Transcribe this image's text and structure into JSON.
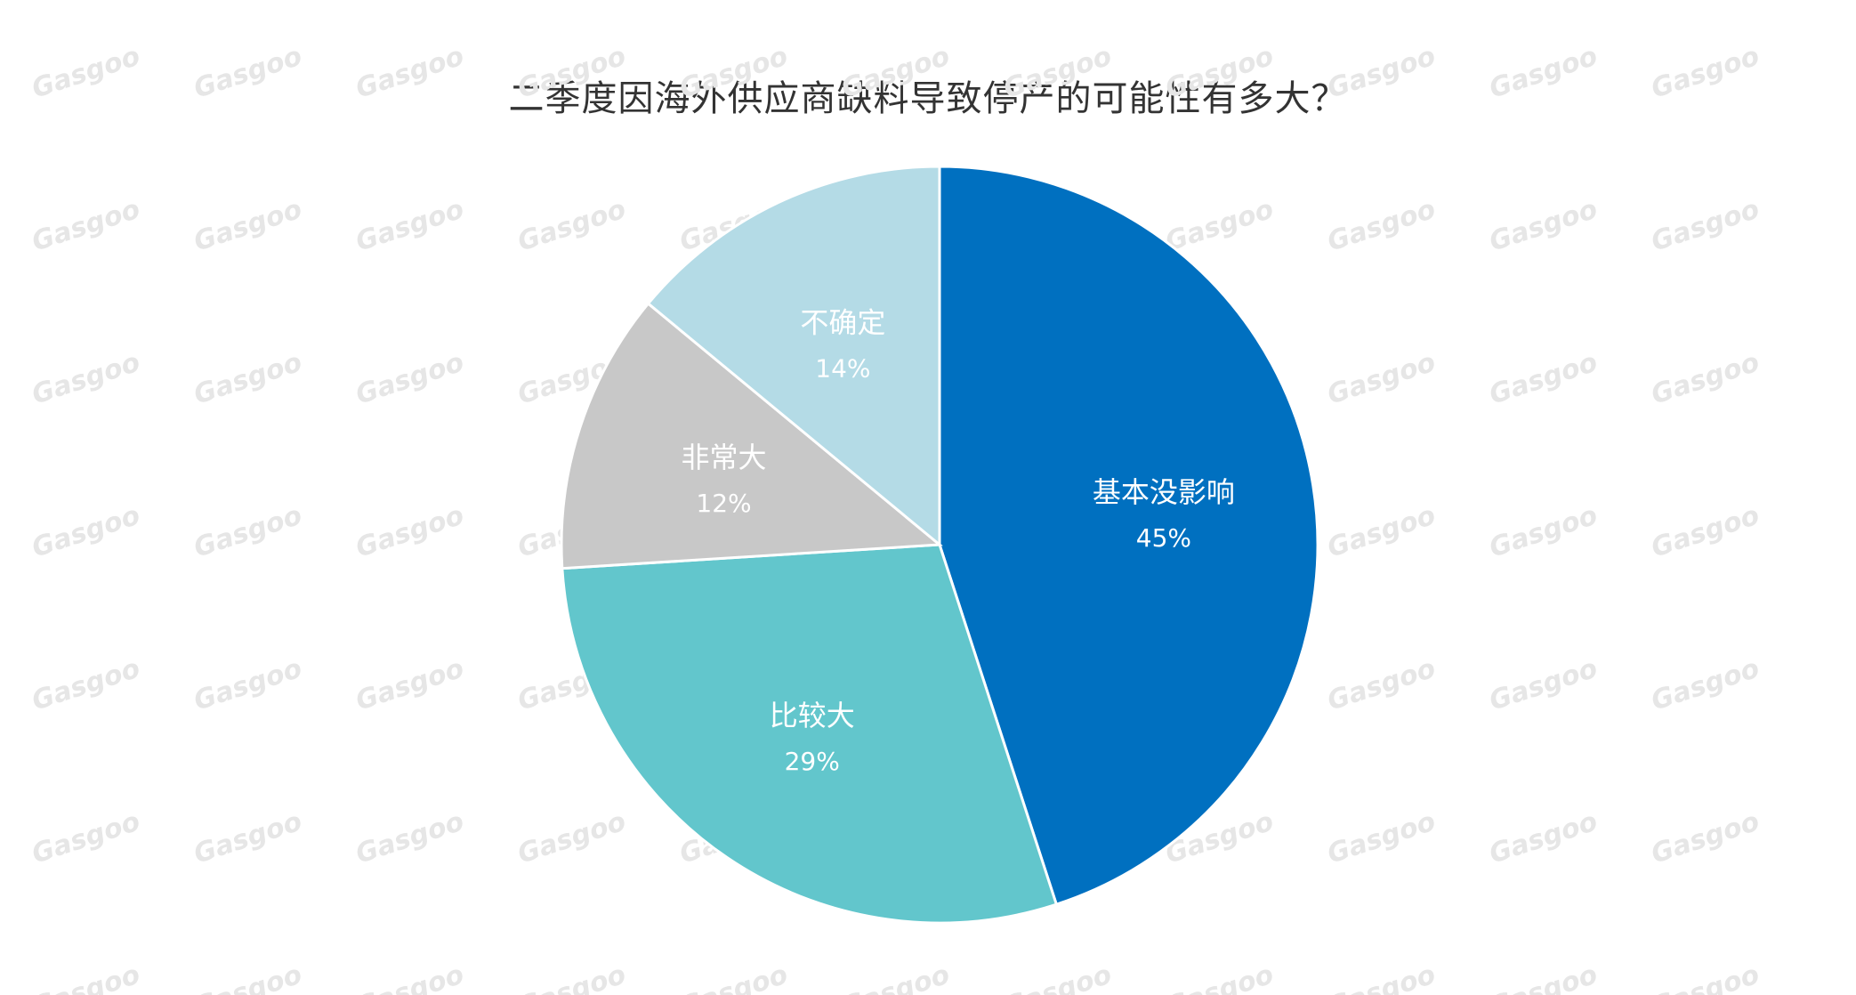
{
  "chart_data": {
    "type": "pie",
    "title": "二季度因海外供应商缺料导致停产的可能性有多大？",
    "slices": [
      {
        "label": "基本没影响",
        "value": 45,
        "display": "45%",
        "color": "#0070c0"
      },
      {
        "label": "比较大",
        "value": 29,
        "display": "29%",
        "color": "#62c6cc"
      },
      {
        "label": "非常大",
        "value": 12,
        "display": "12%",
        "color": "#c8c8c8"
      },
      {
        "label": "不确定",
        "value": 14,
        "display": "14%",
        "color": "#b4dbe6"
      }
    ],
    "start_angle_deg": 0,
    "direction": "clockwise",
    "legend": "none"
  },
  "watermark": {
    "text": "Gasgoo"
  }
}
